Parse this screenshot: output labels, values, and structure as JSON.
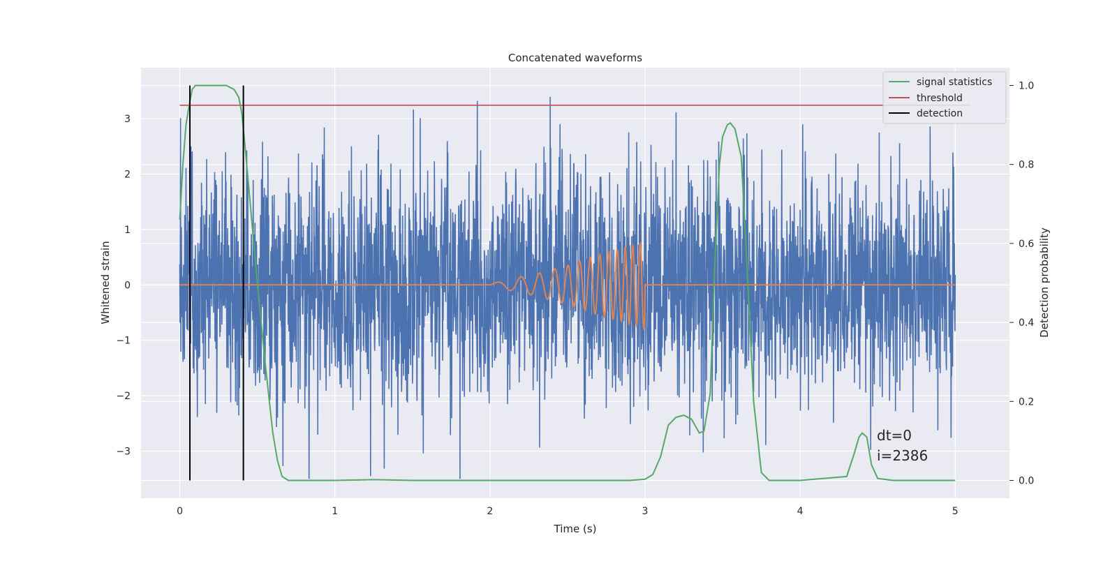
{
  "chart_data": {
    "type": "line",
    "title": "Concatenated waveforms",
    "xlabel": "Time (s)",
    "ylabel": "Whitened strain",
    "y2label": "Detection probability",
    "xlim": [
      -0.25,
      5.35
    ],
    "ylim": [
      -3.85,
      3.92
    ],
    "y2lim": [
      -0.045,
      1.045
    ],
    "xticks": [
      0,
      1,
      2,
      3,
      4,
      5
    ],
    "xtick_labels": [
      "0",
      "1",
      "2",
      "3",
      "4",
      "5"
    ],
    "yticks": [
      3,
      2,
      1,
      0,
      -1,
      -2,
      -3
    ],
    "ytick_labels": [
      "3",
      "2",
      "1",
      "0",
      "−1",
      "−2",
      "−3"
    ],
    "y2ticks": [
      1.0,
      0.8,
      0.6,
      0.4,
      0.2,
      0.0
    ],
    "y2tick_labels": [
      "1.0",
      "0.8",
      "0.6",
      "0.4",
      "0.2",
      "0.0"
    ],
    "grid": true,
    "legend_position": "top-right",
    "colors": {
      "background": "#eaeaf2",
      "grid": "#ffffff",
      "strain": "#4c72b0",
      "waveform": "#dd8452",
      "signal_statistics": "#55a868",
      "threshold": "#c44e52",
      "detection": "#000000"
    },
    "series": [
      {
        "name": "signal statistics",
        "axis": "right",
        "x": [
          0.0,
          0.02,
          0.04,
          0.06,
          0.08,
          0.1,
          0.15,
          0.2,
          0.25,
          0.3,
          0.35,
          0.38,
          0.4,
          0.42,
          0.45,
          0.5,
          0.55,
          0.6,
          0.63,
          0.66,
          0.7,
          0.8,
          1.0,
          1.25,
          1.5,
          2.0,
          2.5,
          2.9,
          3.0,
          3.05,
          3.1,
          3.15,
          3.2,
          3.25,
          3.3,
          3.35,
          3.38,
          3.42,
          3.45,
          3.48,
          3.5,
          3.53,
          3.55,
          3.58,
          3.62,
          3.65,
          3.7,
          3.75,
          3.8,
          4.0,
          4.3,
          4.35,
          4.38,
          4.4,
          4.43,
          4.46,
          4.5,
          4.6,
          5.0
        ],
        "values": [
          0.66,
          0.8,
          0.9,
          0.95,
          0.99,
          1.0,
          1.0,
          1.0,
          1.0,
          1.0,
          0.99,
          0.97,
          0.93,
          0.85,
          0.72,
          0.5,
          0.3,
          0.12,
          0.05,
          0.01,
          0.0,
          0.0,
          0.0,
          0.002,
          0.0,
          0.0,
          0.0,
          0.0,
          0.003,
          0.015,
          0.06,
          0.14,
          0.16,
          0.165,
          0.155,
          0.12,
          0.125,
          0.22,
          0.55,
          0.8,
          0.87,
          0.9,
          0.905,
          0.89,
          0.82,
          0.6,
          0.2,
          0.02,
          0.0,
          0.0,
          0.01,
          0.07,
          0.11,
          0.12,
          0.11,
          0.04,
          0.005,
          0.0,
          0.0
        ]
      },
      {
        "name": "threshold",
        "axis": "right",
        "x": [
          0,
          5.1
        ],
        "values": [
          0.95,
          0.95
        ]
      },
      {
        "name": "detection",
        "axis": "right",
        "segments": [
          {
            "x": 0.065,
            "y": [
              0.0,
              1.0
            ]
          },
          {
            "x": 0.41,
            "y": [
              0.0,
              1.0
            ]
          }
        ]
      },
      {
        "name": "",
        "role": "whitened strain noise",
        "axis": "left",
        "x_range": [
          0,
          5
        ],
        "amplitude_sigma": 1.0,
        "max_abs": 3.5
      },
      {
        "name": "",
        "role": "injected chirp",
        "axis": "left",
        "x": [
          2.0,
          2.1,
          2.2,
          2.3,
          2.4,
          2.5,
          2.6,
          2.7,
          2.8,
          2.9,
          2.97,
          3.0
        ],
        "envelope": [
          0.02,
          0.08,
          0.15,
          0.2,
          0.28,
          0.35,
          0.45,
          0.55,
          0.62,
          0.7,
          0.75,
          0.8
        ],
        "frequency_hz": [
          20,
          25,
          30,
          36,
          42,
          50,
          58,
          66,
          74,
          82,
          86,
          88
        ]
      }
    ],
    "annotations": [
      "dt=0",
      "i=2386"
    ]
  }
}
